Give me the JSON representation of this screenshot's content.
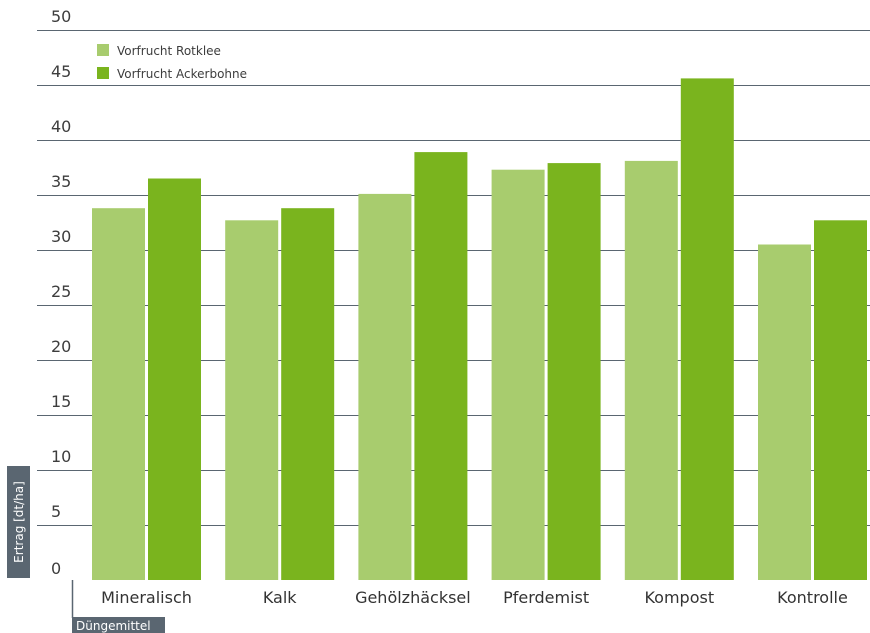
{
  "chart_data": {
    "type": "bar",
    "title": "",
    "xlabel": "Düngemittel",
    "ylabel": "Ertrag [dt/ha]",
    "ylim": [
      0,
      50
    ],
    "yticks": [
      0,
      5,
      10,
      15,
      20,
      25,
      30,
      35,
      40,
      45,
      50
    ],
    "grid": true,
    "legend_position": "top-left",
    "categories": [
      "Mineralisch",
      "Kalk",
      "Gehölzhäcksel",
      "Pferdemist",
      "Kompost",
      "Kontrolle"
    ],
    "series": [
      {
        "name": "Vorfrucht Rotklee",
        "color": "#a8cc6e",
        "values": [
          33.8,
          32.7,
          35.1,
          37.3,
          38.1,
          30.5
        ]
      },
      {
        "name": "Vorfrucht Ackerbohne",
        "color": "#7ab41e",
        "values": [
          36.5,
          33.8,
          38.9,
          37.9,
          45.6,
          32.7
        ]
      }
    ],
    "colors": {
      "gridline": "#5a6671",
      "axis_tag_background": "#5a6671",
      "axis_tag_text": "#ffffff"
    }
  }
}
